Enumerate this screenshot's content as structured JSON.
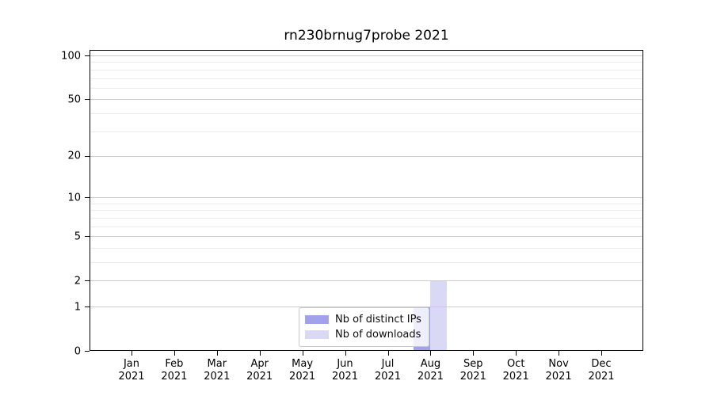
{
  "figure": {
    "background": "#ffffff"
  },
  "title": "rn230brnug7probe 2021",
  "chart_data": {
    "type": "bar",
    "title": "rn230brnug7probe 2021",
    "categories": [
      "Jan 2021",
      "Feb 2021",
      "Mar 2021",
      "Apr 2021",
      "May 2021",
      "Jun 2021",
      "Jul 2021",
      "Aug 2021",
      "Sep 2021",
      "Oct 2021",
      "Nov 2021",
      "Dec 2021"
    ],
    "series": [
      {
        "name": "Nb of distinct IPs",
        "color": "#a2a2eb",
        "values": [
          0,
          0,
          0,
          0,
          0,
          0,
          0,
          1,
          0,
          0,
          0,
          0
        ]
      },
      {
        "name": "Nb of downloads",
        "color": "#d9d9f6",
        "values": [
          0,
          0,
          0,
          0,
          0,
          0,
          0,
          2,
          0,
          0,
          0,
          0
        ]
      }
    ],
    "xlabel": "",
    "ylabel": "",
    "yscale": "log1p",
    "ylim": [
      0,
      110
    ],
    "y_major_ticks": [
      0,
      1,
      2,
      5,
      10,
      20,
      50,
      100
    ],
    "y_minor_ticks": [
      3,
      4,
      6,
      7,
      8,
      9,
      30,
      40,
      60,
      70,
      80,
      90
    ],
    "grid": "both",
    "legend_position": "lower center"
  },
  "colors": {
    "grid_major": "#cccccc",
    "grid_minor": "#ebebeb",
    "spine": "#000000",
    "legend_border": "#c9c9c9",
    "legend_background": "rgba(255,255,255,0.82)"
  }
}
